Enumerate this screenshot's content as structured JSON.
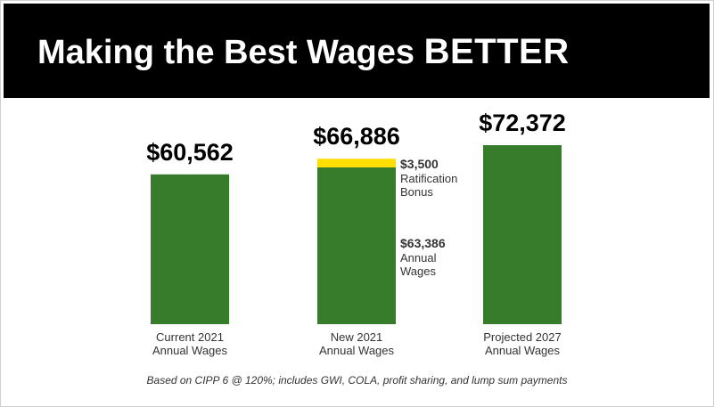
{
  "header": {
    "title_main": "Making the Best Wages",
    "title_emphasis": "BETTER"
  },
  "footnote": "Based on CIPP 6 @ 120%; includes GWI, COLA, profit sharing, and lump sum payments",
  "colors": {
    "header_bg": "#000000",
    "bar_green": "#367c2b",
    "bonus_yellow": "#ffde00",
    "label_text": "#333333"
  },
  "chart_data": {
    "type": "bar",
    "categories": [
      [
        "Current 2021",
        "Annual Wages"
      ],
      [
        "New 2021",
        "Annual Wages"
      ],
      [
        "Projected 2027",
        "Annual Wages"
      ]
    ],
    "totals": [
      "$60,562",
      "$66,886",
      "$72,372"
    ],
    "series": [
      {
        "values": [
          60562,
          63386,
          72372
        ]
      },
      {
        "values": [
          0,
          3500,
          0
        ]
      }
    ],
    "segment_labels": [
      {
        "category": 1,
        "segment": 1,
        "value": "$3,500",
        "lines": [
          "Ratification",
          "Bonus"
        ]
      },
      {
        "category": 1,
        "segment": 0,
        "value": "$63,386",
        "lines": [
          "Annual",
          "Wages"
        ]
      }
    ],
    "stacked": true,
    "ylim": [
      0,
      72372
    ],
    "grid": false,
    "legend": "none"
  }
}
